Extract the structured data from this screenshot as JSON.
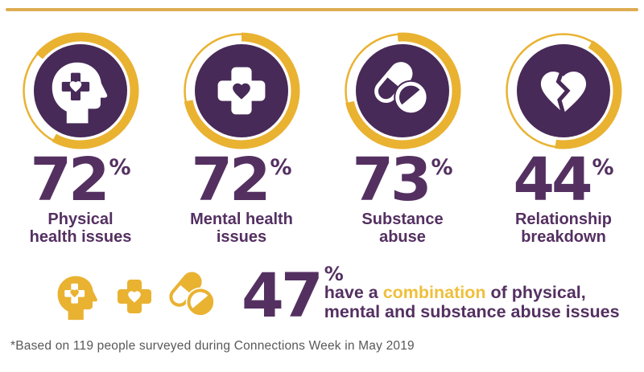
{
  "colors": {
    "purple": "#472A58",
    "purple_text": "#543061",
    "gold": "#E9B231",
    "gold_line": "#DDAD52",
    "gold_highlight": "#EFBF3C",
    "footnote_gray": "#58585A",
    "icon_white": "#FFFFFF"
  },
  "percent_symbol": "%",
  "stats": [
    {
      "percent": 72,
      "label_line1": "Physical",
      "label_line2": "health issues",
      "icon": "head-cross-heart-icon"
    },
    {
      "percent": 72,
      "label_line1": "Mental health",
      "label_line2": "issues",
      "icon": "medical-cross-heart-icon"
    },
    {
      "percent": 73,
      "label_line1": "Substance",
      "label_line2": "abuse",
      "icon": "pills-icon"
    },
    {
      "percent": 44,
      "label_line1": "Relationship",
      "label_line2": "breakdown",
      "icon": "broken-heart-icon"
    }
  ],
  "combination": {
    "percent": 47,
    "icons": [
      "head-cross-heart-icon",
      "medical-cross-heart-icon",
      "pills-icon"
    ],
    "line1_before": "have a ",
    "line1_highlight": "combination",
    "line1_after": " of physical,",
    "line2": "mental and substance abuse issues"
  },
  "footnote": "*Based on 119 people surveyed during Connections Week in May 2019"
}
